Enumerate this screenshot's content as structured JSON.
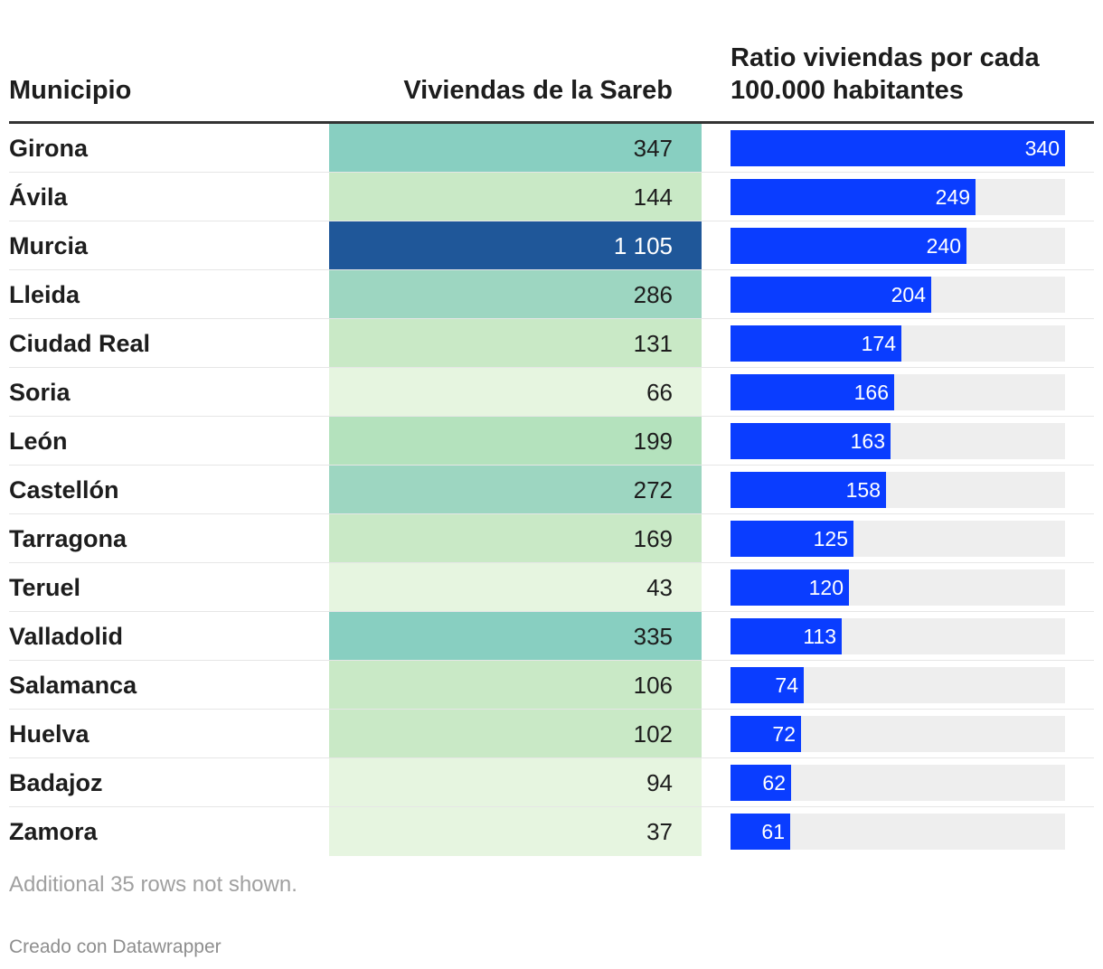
{
  "headers": {
    "municipio": "Municipio",
    "viviendas": "Viviendas de la Sareb",
    "ratio_line1": "Ratio viviendas por cada",
    "ratio_line2": "100.000 habitantes"
  },
  "colors": {
    "bar": "#0a3dff",
    "track": "#eeeeee",
    "scale": [
      "#e6f5e0",
      "#c9e9c6",
      "#b4e2bd",
      "#9dd6c1",
      "#88cfc1",
      "#1f5799"
    ]
  },
  "chart_data": {
    "type": "table",
    "columns": [
      "Municipio",
      "Viviendas de la Sareb",
      "Ratio viviendas por cada 100.000 habitantes"
    ],
    "bar_max": 340,
    "rows": [
      {
        "municipio": "Girona",
        "viviendas": "347",
        "viviendas_num": 347,
        "ratio": 340
      },
      {
        "municipio": "Ávila",
        "viviendas": "144",
        "viviendas_num": 144,
        "ratio": 249
      },
      {
        "municipio": "Murcia",
        "viviendas": "1 105",
        "viviendas_num": 1105,
        "ratio": 240
      },
      {
        "municipio": "Lleida",
        "viviendas": "286",
        "viviendas_num": 286,
        "ratio": 204
      },
      {
        "municipio": "Ciudad Real",
        "viviendas": "131",
        "viviendas_num": 131,
        "ratio": 174
      },
      {
        "municipio": "Soria",
        "viviendas": "66",
        "viviendas_num": 66,
        "ratio": 166
      },
      {
        "municipio": "León",
        "viviendas": "199",
        "viviendas_num": 199,
        "ratio": 163
      },
      {
        "municipio": "Castellón",
        "viviendas": "272",
        "viviendas_num": 272,
        "ratio": 158
      },
      {
        "municipio": "Tarragona",
        "viviendas": "169",
        "viviendas_num": 169,
        "ratio": 125
      },
      {
        "municipio": "Teruel",
        "viviendas": "43",
        "viviendas_num": 43,
        "ratio": 120
      },
      {
        "municipio": "Valladolid",
        "viviendas": "335",
        "viviendas_num": 335,
        "ratio": 113
      },
      {
        "municipio": "Salamanca",
        "viviendas": "106",
        "viviendas_num": 106,
        "ratio": 74
      },
      {
        "municipio": "Huelva",
        "viviendas": "102",
        "viviendas_num": 102,
        "ratio": 72
      },
      {
        "municipio": "Badajoz",
        "viviendas": "94",
        "viviendas_num": 94,
        "ratio": 62
      },
      {
        "municipio": "Zamora",
        "viviendas": "37",
        "viviendas_num": 37,
        "ratio": 61
      }
    ]
  },
  "footer": {
    "note": "Additional 35 rows not shown.",
    "credit": "Creado con Datawrapper"
  }
}
